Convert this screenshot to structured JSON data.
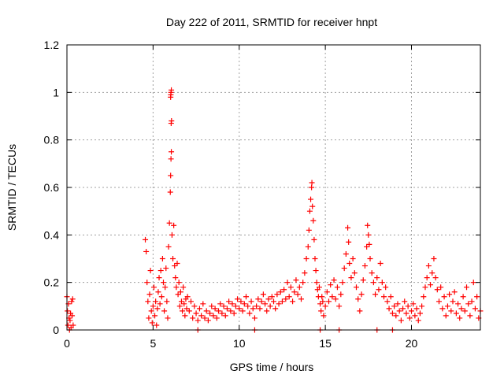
{
  "chart_data": {
    "type": "scatter",
    "title": "Day 222 of 2011, SRMTID for receiver hnpt",
    "xlabel": "GPS time / hours",
    "ylabel": "SRMTID / TECUs",
    "xlim": [
      0,
      24
    ],
    "ylim": [
      0,
      1.2
    ],
    "xticks": [
      0,
      5,
      10,
      15,
      20
    ],
    "yticks": [
      0,
      0.2,
      0.4,
      0.6,
      0.8,
      1,
      1.2
    ],
    "xtick_labels": [
      "0",
      "5",
      "10",
      "15",
      "20"
    ],
    "ytick_labels": [
      "0",
      "0.2",
      "0.4",
      "0.6",
      "0.8",
      "1",
      "1.2"
    ],
    "grid": true,
    "marker": "+",
    "color": "#ff0000",
    "series": [
      {
        "name": "SRMTID",
        "points": [
          [
            0.0,
            0.14
          ],
          [
            0.03,
            0.08
          ],
          [
            0.06,
            0.02
          ],
          [
            0.09,
            0.11
          ],
          [
            0.12,
            0.05
          ],
          [
            0.15,
            0.0
          ],
          [
            0.18,
            0.04
          ],
          [
            0.21,
            0.07
          ],
          [
            0.24,
            0.01
          ],
          [
            0.27,
            0.12
          ],
          [
            0.3,
            0.06
          ],
          [
            0.33,
            0.13
          ],
          [
            0.36,
            0.02
          ],
          [
            4.55,
            0.38
          ],
          [
            4.6,
            0.33
          ],
          [
            4.65,
            0.2
          ],
          [
            4.7,
            0.12
          ],
          [
            4.75,
            0.05
          ],
          [
            4.8,
            0.15
          ],
          [
            4.85,
            0.25
          ],
          [
            4.9,
            0.08
          ],
          [
            4.95,
            0.03
          ],
          [
            5.0,
            0.1
          ],
          [
            5.05,
            0.18
          ],
          [
            5.1,
            0.06
          ],
          [
            5.15,
            0.12
          ],
          [
            5.2,
            0.02
          ],
          [
            5.25,
            0.09
          ],
          [
            5.3,
            0.16
          ],
          [
            5.35,
            0.22
          ],
          [
            5.4,
            0.11
          ],
          [
            5.45,
            0.25
          ],
          [
            5.5,
            0.14
          ],
          [
            5.55,
            0.3
          ],
          [
            5.6,
            0.2
          ],
          [
            5.65,
            0.08
          ],
          [
            5.7,
            0.18
          ],
          [
            5.75,
            0.26
          ],
          [
            5.8,
            0.12
          ],
          [
            5.85,
            0.05
          ],
          [
            5.9,
            0.35
          ],
          [
            5.95,
            0.45
          ],
          [
            6.0,
            0.58
          ],
          [
            6.02,
            0.65
          ],
          [
            6.04,
            0.72
          ],
          [
            6.06,
            0.75
          ],
          [
            6.05,
            0.87
          ],
          [
            6.07,
            0.88
          ],
          [
            6.02,
            0.98
          ],
          [
            6.04,
            1.0
          ],
          [
            6.06,
            1.01
          ],
          [
            6.03,
            0.99
          ],
          [
            6.1,
            0.4
          ],
          [
            6.15,
            0.3
          ],
          [
            6.2,
            0.44
          ],
          [
            6.25,
            0.27
          ],
          [
            6.3,
            0.22
          ],
          [
            6.35,
            0.18
          ],
          [
            6.4,
            0.28
          ],
          [
            6.45,
            0.15
          ],
          [
            6.5,
            0.2
          ],
          [
            6.55,
            0.1
          ],
          [
            6.6,
            0.16
          ],
          [
            6.65,
            0.12
          ],
          [
            6.7,
            0.08
          ],
          [
            6.75,
            0.18
          ],
          [
            6.8,
            0.11
          ],
          [
            6.85,
            0.06
          ],
          [
            6.9,
            0.13
          ],
          [
            6.95,
            0.09
          ],
          [
            7.0,
            0.14
          ],
          [
            7.1,
            0.08
          ],
          [
            7.2,
            0.12
          ],
          [
            7.3,
            0.05
          ],
          [
            7.4,
            0.1
          ],
          [
            7.5,
            0.07
          ],
          [
            7.6,
            0.04
          ],
          [
            7.7,
            0.09
          ],
          [
            7.8,
            0.06
          ],
          [
            7.9,
            0.11
          ],
          [
            8.0,
            0.05
          ],
          [
            8.1,
            0.08
          ],
          [
            8.2,
            0.04
          ],
          [
            8.3,
            0.07
          ],
          [
            8.4,
            0.1
          ],
          [
            8.5,
            0.06
          ],
          [
            8.6,
            0.09
          ],
          [
            8.7,
            0.05
          ],
          [
            8.8,
            0.08
          ],
          [
            8.9,
            0.11
          ],
          [
            9.0,
            0.07
          ],
          [
            9.1,
            0.1
          ],
          [
            9.2,
            0.06
          ],
          [
            9.3,
            0.09
          ],
          [
            9.4,
            0.12
          ],
          [
            9.5,
            0.08
          ],
          [
            9.6,
            0.11
          ],
          [
            9.7,
            0.07
          ],
          [
            9.8,
            0.1
          ],
          [
            9.9,
            0.13
          ],
          [
            10.0,
            0.09
          ],
          [
            10.1,
            0.12
          ],
          [
            10.2,
            0.08
          ],
          [
            10.3,
            0.11
          ],
          [
            10.4,
            0.14
          ],
          [
            10.5,
            0.1
          ],
          [
            10.6,
            0.07
          ],
          [
            10.7,
            0.12
          ],
          [
            10.8,
            0.09
          ],
          [
            10.9,
            0.05
          ],
          [
            11.0,
            0.1
          ],
          [
            11.1,
            0.13
          ],
          [
            11.2,
            0.09
          ],
          [
            11.3,
            0.12
          ],
          [
            11.4,
            0.15
          ],
          [
            11.5,
            0.11
          ],
          [
            11.6,
            0.08
          ],
          [
            11.7,
            0.13
          ],
          [
            11.8,
            0.1
          ],
          [
            11.9,
            0.14
          ],
          [
            12.0,
            0.12
          ],
          [
            12.1,
            0.09
          ],
          [
            12.2,
            0.15
          ],
          [
            12.3,
            0.11
          ],
          [
            12.4,
            0.16
          ],
          [
            12.5,
            0.12
          ],
          [
            12.6,
            0.17
          ],
          [
            12.7,
            0.13
          ],
          [
            12.8,
            0.2
          ],
          [
            12.9,
            0.14
          ],
          [
            13.0,
            0.18
          ],
          [
            13.1,
            0.12
          ],
          [
            13.2,
            0.16
          ],
          [
            13.3,
            0.21
          ],
          [
            13.4,
            0.15
          ],
          [
            13.5,
            0.18
          ],
          [
            13.6,
            0.13
          ],
          [
            13.7,
            0.2
          ],
          [
            13.8,
            0.24
          ],
          [
            13.9,
            0.3
          ],
          [
            14.0,
            0.35
          ],
          [
            14.05,
            0.42
          ],
          [
            14.1,
            0.5
          ],
          [
            14.15,
            0.55
          ],
          [
            14.2,
            0.6
          ],
          [
            14.22,
            0.62
          ],
          [
            14.25,
            0.52
          ],
          [
            14.3,
            0.46
          ],
          [
            14.35,
            0.38
          ],
          [
            14.4,
            0.3
          ],
          [
            14.45,
            0.25
          ],
          [
            14.5,
            0.2
          ],
          [
            14.55,
            0.17
          ],
          [
            14.6,
            0.14
          ],
          [
            14.65,
            0.18
          ],
          [
            14.7,
            0.11
          ],
          [
            14.75,
            0.08
          ],
          [
            14.8,
            0.14
          ],
          [
            14.85,
            0.12
          ],
          [
            14.9,
            0.06
          ],
          [
            15.0,
            0.1
          ],
          [
            15.1,
            0.16
          ],
          [
            15.2,
            0.12
          ],
          [
            15.3,
            0.19
          ],
          [
            15.4,
            0.14
          ],
          [
            15.5,
            0.21
          ],
          [
            15.6,
            0.13
          ],
          [
            15.7,
            0.18
          ],
          [
            15.8,
            0.1
          ],
          [
            15.9,
            0.15
          ],
          [
            16.0,
            0.2
          ],
          [
            16.1,
            0.26
          ],
          [
            16.2,
            0.32
          ],
          [
            16.3,
            0.43
          ],
          [
            16.35,
            0.37
          ],
          [
            16.4,
            0.28
          ],
          [
            16.5,
            0.22
          ],
          [
            16.6,
            0.3
          ],
          [
            16.7,
            0.24
          ],
          [
            16.8,
            0.18
          ],
          [
            16.9,
            0.13
          ],
          [
            17.0,
            0.08
          ],
          [
            17.1,
            0.15
          ],
          [
            17.2,
            0.21
          ],
          [
            17.3,
            0.27
          ],
          [
            17.4,
            0.35
          ],
          [
            17.45,
            0.44
          ],
          [
            17.5,
            0.4
          ],
          [
            17.55,
            0.36
          ],
          [
            17.6,
            0.3
          ],
          [
            17.7,
            0.24
          ],
          [
            17.8,
            0.2
          ],
          [
            17.9,
            0.15
          ],
          [
            18.0,
            0.22
          ],
          [
            18.1,
            0.17
          ],
          [
            18.2,
            0.28
          ],
          [
            18.3,
            0.2
          ],
          [
            18.4,
            0.14
          ],
          [
            18.5,
            0.18
          ],
          [
            18.6,
            0.12
          ],
          [
            18.7,
            0.09
          ],
          [
            18.8,
            0.14
          ],
          [
            18.9,
            0.07
          ],
          [
            19.0,
            0.1
          ],
          [
            19.1,
            0.06
          ],
          [
            19.2,
            0.11
          ],
          [
            19.3,
            0.08
          ],
          [
            19.4,
            0.04
          ],
          [
            19.5,
            0.09
          ],
          [
            19.6,
            0.12
          ],
          [
            19.7,
            0.07
          ],
          [
            19.8,
            0.1
          ],
          [
            19.9,
            0.05
          ],
          [
            20.0,
            0.08
          ],
          [
            20.1,
            0.11
          ],
          [
            20.2,
            0.06
          ],
          [
            20.3,
            0.09
          ],
          [
            20.4,
            0.04
          ],
          [
            20.5,
            0.07
          ],
          [
            20.6,
            0.1
          ],
          [
            20.7,
            0.14
          ],
          [
            20.8,
            0.18
          ],
          [
            20.9,
            0.22
          ],
          [
            21.0,
            0.27
          ],
          [
            21.1,
            0.19
          ],
          [
            21.2,
            0.24
          ],
          [
            21.3,
            0.3
          ],
          [
            21.4,
            0.22
          ],
          [
            21.5,
            0.17
          ],
          [
            21.6,
            0.12
          ],
          [
            21.7,
            0.18
          ],
          [
            21.8,
            0.09
          ],
          [
            21.9,
            0.14
          ],
          [
            22.0,
            0.06
          ],
          [
            22.1,
            0.1
          ],
          [
            22.2,
            0.15
          ],
          [
            22.3,
            0.08
          ],
          [
            22.4,
            0.12
          ],
          [
            22.5,
            0.16
          ],
          [
            22.6,
            0.07
          ],
          [
            22.7,
            0.11
          ],
          [
            22.8,
            0.05
          ],
          [
            22.9,
            0.09
          ],
          [
            23.0,
            0.14
          ],
          [
            23.1,
            0.08
          ],
          [
            23.2,
            0.18
          ],
          [
            23.3,
            0.11
          ],
          [
            23.4,
            0.06
          ],
          [
            23.5,
            0.12
          ],
          [
            23.6,
            0.2
          ],
          [
            23.7,
            0.09
          ],
          [
            23.8,
            0.14
          ],
          [
            23.9,
            0.05
          ],
          [
            24.0,
            0.08
          ],
          [
            7.6,
            0.0
          ],
          [
            10.9,
            0.0
          ],
          [
            14.7,
            0.0
          ],
          [
            15.8,
            0.0
          ],
          [
            18.0,
            0.0
          ],
          [
            18.9,
            0.0
          ]
        ]
      }
    ]
  }
}
